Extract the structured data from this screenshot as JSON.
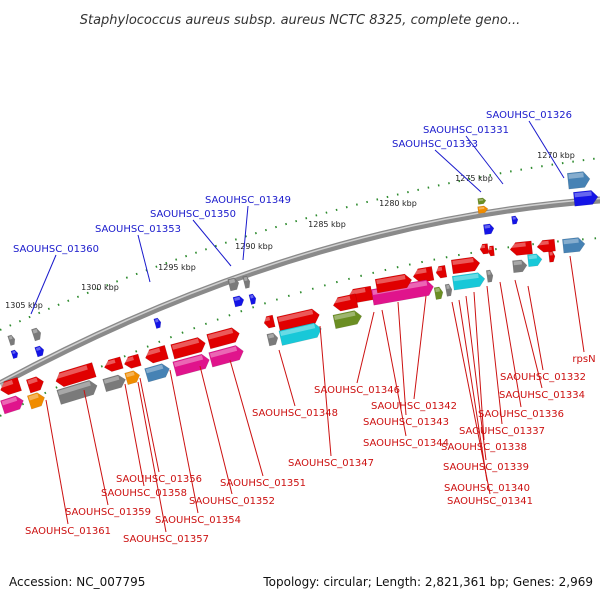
{
  "title": "Staphylococcus aureus subsp. aureus NCTC 8325, complete geno...",
  "footer": {
    "accession": "Accession: NC_007795",
    "info": "Topology: circular; Length: 2,821,361 bp; Genes: 2,969"
  },
  "ruler": [
    "1270 kbp",
    "1275 kbp",
    "1280 kbp",
    "1285 kbp",
    "1290 kbp",
    "1295 kbp",
    "1300 kbp",
    "1305 kbp"
  ],
  "colors": {
    "backbone": "#8a8a8a",
    "label_upper": "#1a1acc",
    "label_lower": "#cc1111",
    "tick": "#2e8b2e",
    "gene_red": "#e00000",
    "gene_magenta": "#e0148c",
    "gene_cyan": "#18c8d8",
    "gene_orange": "#f08c00",
    "gene_green": "#6b8e23",
    "gene_blue": "#1414e6",
    "gene_steel": "#4682b4",
    "gene_gray": "#7a7a7a"
  },
  "upper_labels": [
    "SAOUHSC_01326",
    "SAOUHSC_01331",
    "SAOUHSC_01333",
    "SAOUHSC_01349",
    "SAOUHSC_01350",
    "SAOUHSC_01353",
    "SAOUHSC_01360"
  ],
  "lower_labels": [
    "rpsN",
    "SAOUHSC_01332",
    "SAOUHSC_01334",
    "SAOUHSC_01336",
    "SAOUHSC_01337",
    "SAOUHSC_01338",
    "SAOUHSC_01339",
    "SAOUHSC_01340",
    "SAOUHSC_01341",
    "SAOUHSC_01342",
    "SAOUHSC_01343",
    "SAOUHSC_01344",
    "SAOUHSC_01346",
    "SAOUHSC_01347",
    "SAOUHSC_01348",
    "SAOUHSC_01351",
    "SAOUHSC_01352",
    "SAOUHSC_01354",
    "SAOUHSC_01356",
    "SAOUHSC_01357",
    "SAOUHSC_01358",
    "SAOUHSC_01359",
    "SAOUHSC_01361"
  ]
}
